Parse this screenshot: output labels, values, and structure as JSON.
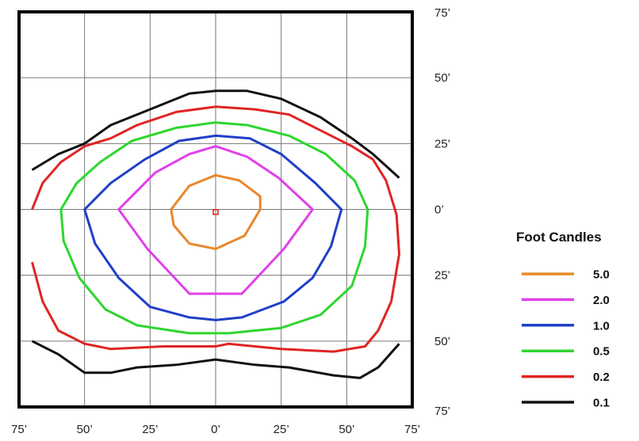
{
  "chart_data": {
    "type": "line",
    "title": "",
    "xlabel": "",
    "ylabel": "",
    "xlim": [
      -75,
      75
    ],
    "ylim": [
      -75,
      75
    ],
    "grid": true,
    "x_ticks": [
      -75,
      -50,
      -25,
      0,
      25,
      50,
      75
    ],
    "y_ticks": [
      75,
      50,
      25,
      0,
      -25,
      -50,
      -75
    ],
    "x_tick_labels": [
      "75’",
      "50’",
      "25’",
      "0’",
      "25’",
      "50’",
      "75’"
    ],
    "y_tick_labels": [
      "75’",
      "50’",
      "25’",
      "0’",
      "25’",
      "50’",
      "75’"
    ],
    "legend": {
      "title": "Foot Candles",
      "placement": "right"
    },
    "center_marker": {
      "x": 0,
      "y": -1,
      "color": "#e31a1c"
    },
    "series": [
      {
        "name": "5.0",
        "color": "#e8882a",
        "closed": true,
        "segments": [
          [
            [
              0,
              13
            ],
            [
              9,
              11
            ],
            [
              17,
              5
            ],
            [
              17,
              0
            ],
            [
              11,
              -10
            ],
            [
              0,
              -15
            ],
            [
              -10,
              -13
            ],
            [
              -16,
              -6
            ],
            [
              -17,
              0
            ],
            [
              -10,
              9
            ],
            [
              0,
              13
            ]
          ]
        ]
      },
      {
        "name": "2.0",
        "color": "#e040e8",
        "closed": true,
        "segments": [
          [
            [
              0,
              24
            ],
            [
              12,
              20
            ],
            [
              24,
              12
            ],
            [
              37,
              0
            ],
            [
              26,
              -15
            ],
            [
              10,
              -32
            ],
            [
              -10,
              -32
            ],
            [
              -26,
              -15
            ],
            [
              -37,
              0
            ],
            [
              -23,
              14
            ],
            [
              -10,
              21
            ],
            [
              0,
              24
            ]
          ]
        ]
      },
      {
        "name": "1.0",
        "color": "#1f3fc7",
        "closed": true,
        "segments": [
          [
            [
              0,
              28
            ],
            [
              13,
              27
            ],
            [
              25,
              21
            ],
            [
              38,
              10
            ],
            [
              48,
              0
            ],
            [
              44,
              -14
            ],
            [
              37,
              -26
            ],
            [
              26,
              -35
            ],
            [
              10,
              -41
            ],
            [
              0,
              -42
            ],
            [
              -10,
              -41
            ],
            [
              -25,
              -37
            ],
            [
              -37,
              -26
            ],
            [
              -46,
              -13
            ],
            [
              -50,
              0
            ],
            [
              -40,
              10
            ],
            [
              -27,
              19
            ],
            [
              -14,
              26
            ],
            [
              0,
              28
            ]
          ]
        ]
      },
      {
        "name": "0.5",
        "color": "#2fd62f",
        "closed": true,
        "segments": [
          [
            [
              0,
              33
            ],
            [
              12,
              32
            ],
            [
              28,
              28
            ],
            [
              42,
              21
            ],
            [
              53,
              11
            ],
            [
              58,
              0
            ],
            [
              57,
              -14
            ],
            [
              52,
              -29
            ],
            [
              40,
              -40
            ],
            [
              25,
              -45
            ],
            [
              5,
              -47
            ],
            [
              -10,
              -47
            ],
            [
              -30,
              -44
            ],
            [
              -42,
              -38
            ],
            [
              -52,
              -26
            ],
            [
              -58,
              -12
            ],
            [
              -59,
              0
            ],
            [
              -53,
              10
            ],
            [
              -44,
              18
            ],
            [
              -32,
              26
            ],
            [
              -15,
              31
            ],
            [
              0,
              33
            ]
          ]
        ]
      },
      {
        "name": "0.2",
        "color": "#e02424",
        "closed": false,
        "segments": [
          [
            [
              -70,
              0
            ],
            [
              -66,
              10
            ],
            [
              -59,
              18
            ],
            [
              -50,
              24
            ],
            [
              -40,
              27
            ],
            [
              -30,
              32
            ],
            [
              -15,
              37
            ],
            [
              0,
              39
            ],
            [
              15,
              38
            ],
            [
              28,
              36
            ],
            [
              40,
              30
            ],
            [
              52,
              24
            ],
            [
              60,
              19
            ],
            [
              65,
              11
            ],
            [
              69,
              -2
            ],
            [
              70,
              -17
            ],
            [
              67,
              -35
            ],
            [
              62,
              -46
            ],
            [
              57,
              -52
            ],
            [
              45,
              -54
            ],
            [
              25,
              -53
            ],
            [
              5,
              -51
            ],
            [
              0,
              -52
            ],
            [
              -10,
              -52
            ],
            [
              -20,
              -52
            ],
            [
              -40,
              -53
            ],
            [
              -50,
              -51
            ],
            [
              -60,
              -46
            ],
            [
              -66,
              -35
            ],
            [
              -70,
              -20
            ]
          ]
        ]
      },
      {
        "name": "0.1",
        "color": "#111111",
        "closed": false,
        "segments": [
          [
            [
              -70,
              15
            ],
            [
              -60,
              21
            ],
            [
              -50,
              25
            ],
            [
              -40,
              32
            ],
            [
              -25,
              38
            ],
            [
              -10,
              44
            ],
            [
              0,
              45
            ],
            [
              12,
              45
            ],
            [
              25,
              42
            ],
            [
              40,
              35
            ],
            [
              52,
              27
            ],
            [
              60,
              21
            ],
            [
              70,
              12
            ]
          ],
          [
            [
              -70,
              -50
            ],
            [
              -60,
              -55
            ],
            [
              -50,
              -62
            ],
            [
              -40,
              -62
            ],
            [
              -30,
              -60
            ],
            [
              -15,
              -59
            ],
            [
              0,
              -57
            ],
            [
              15,
              -59
            ],
            [
              28,
              -60
            ],
            [
              45,
              -63
            ],
            [
              55,
              -64
            ],
            [
              62,
              -60
            ],
            [
              70,
              -51
            ]
          ]
        ]
      }
    ]
  }
}
